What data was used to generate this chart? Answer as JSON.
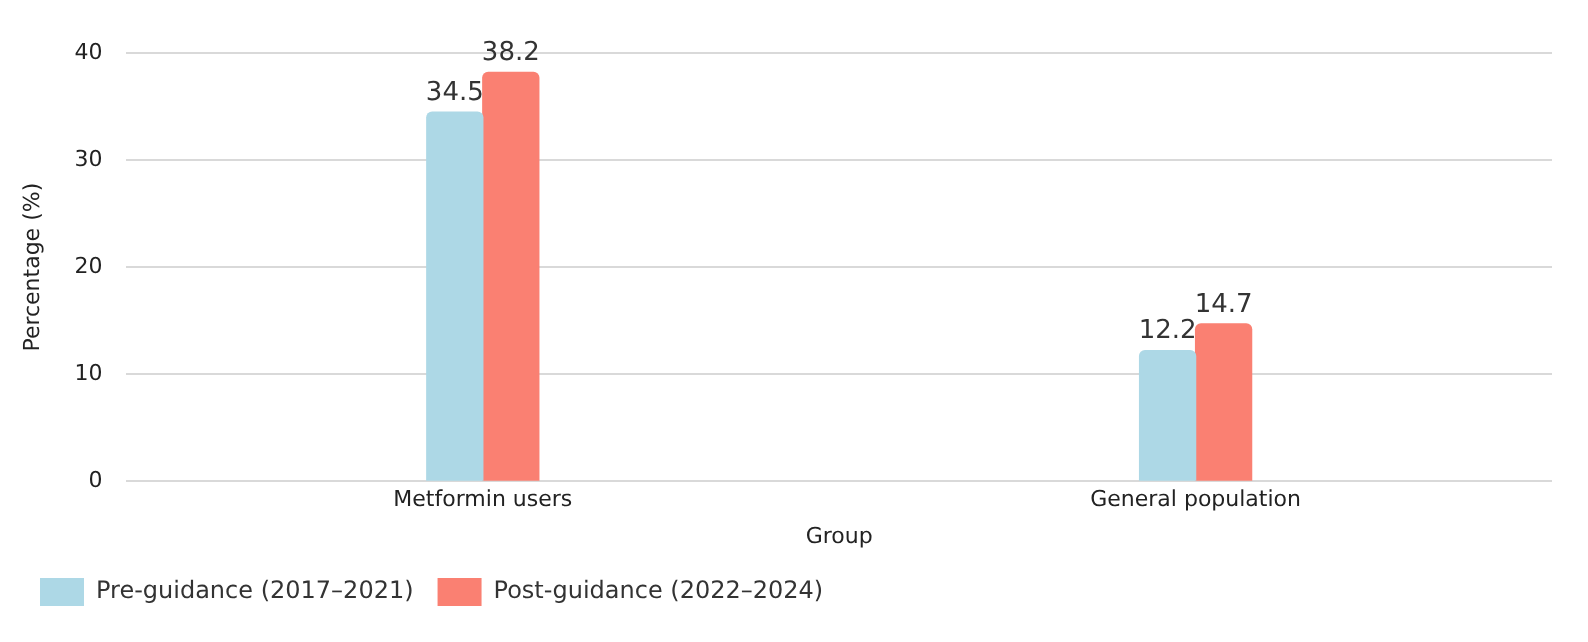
{
  "chart_data": {
    "type": "bar",
    "xlabel": "Group",
    "ylabel": "Percentage (%)",
    "categories": [
      "Metformin users",
      "General population"
    ],
    "series": [
      {
        "name": "Pre-guidance (2017–2021)",
        "color": "#add8e6",
        "values": [
          34.5,
          12.2
        ]
      },
      {
        "name": "Post-guidance (2022–2024)",
        "color": "#fa8072",
        "values": [
          38.2,
          14.7
        ]
      }
    ],
    "ylim": [
      0,
      40
    ],
    "yticks": [
      0,
      10,
      20,
      30,
      40
    ],
    "grid": "y",
    "legend": "bottom left",
    "data_labels": true
  }
}
